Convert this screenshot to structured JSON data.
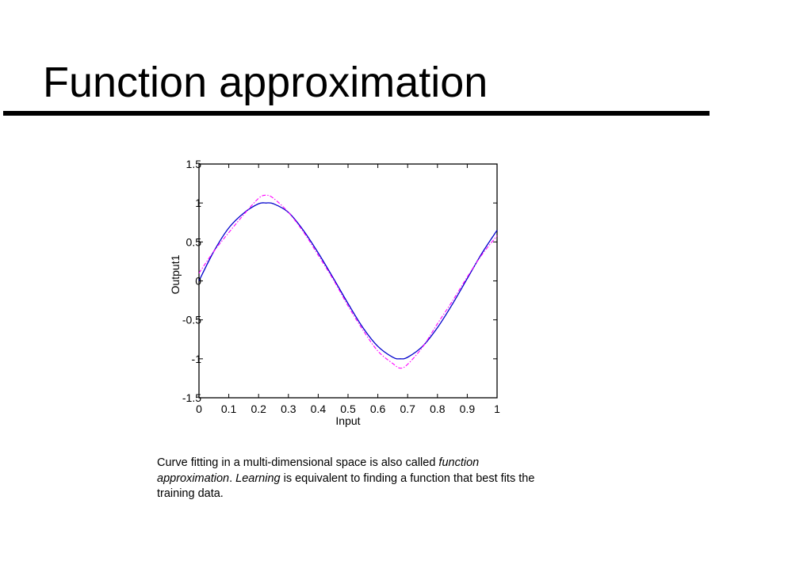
{
  "slide": {
    "title": "Function approximation"
  },
  "caption": {
    "part1": "Curve fitting in a multi-dimensional space is also called ",
    "italic1": "function approximation",
    "part2": ". ",
    "italic2": "Learning",
    "part3": " is equivalent to finding a function that best fits the training data."
  },
  "chart_data": {
    "type": "line",
    "title": "",
    "xlabel": "Input",
    "ylabel": "Output1",
    "xlim": [
      0,
      1
    ],
    "ylim": [
      -1.5,
      1.5
    ],
    "xticks": [
      "0",
      "0.1",
      "0.2",
      "0.3",
      "0.4",
      "0.5",
      "0.6",
      "0.7",
      "0.8",
      "0.9",
      "1"
    ],
    "yticks": [
      "1.5",
      "1",
      "0.5",
      "0",
      "-0.5",
      "-1",
      "-1.5"
    ],
    "grid": false,
    "x": [
      0,
      0.05,
      0.1,
      0.15,
      0.2,
      0.225,
      0.25,
      0.3,
      0.35,
      0.4,
      0.45,
      0.5,
      0.55,
      0.6,
      0.65,
      0.675,
      0.7,
      0.75,
      0.8,
      0.85,
      0.9,
      0.95,
      1
    ],
    "series": [
      {
        "color": "#0000cc",
        "dash": "solid",
        "values": [
          0.0,
          0.38,
          0.68,
          0.87,
          0.99,
          1.0,
          0.99,
          0.88,
          0.65,
          0.36,
          0.04,
          -0.29,
          -0.6,
          -0.84,
          -0.98,
          -1.0,
          -0.98,
          -0.84,
          -0.6,
          -0.3,
          0.03,
          0.36,
          0.65
        ]
      },
      {
        "color": "#ff00ff",
        "dash": "dashdot",
        "values": [
          0.1,
          0.38,
          0.62,
          0.85,
          1.06,
          1.1,
          1.06,
          0.88,
          0.63,
          0.33,
          0.02,
          -0.32,
          -0.63,
          -0.9,
          -1.06,
          -1.12,
          -1.07,
          -0.85,
          -0.55,
          -0.26,
          0.05,
          0.34,
          0.58
        ]
      }
    ]
  }
}
